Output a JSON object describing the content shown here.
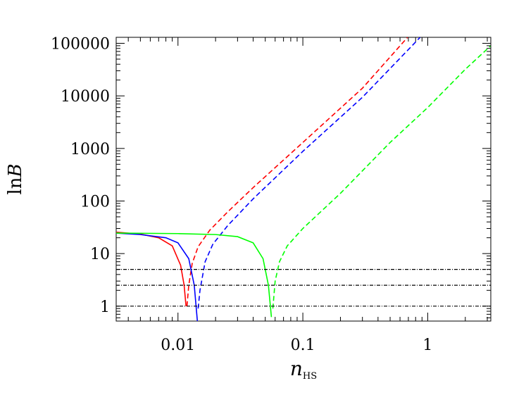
{
  "chart_data": {
    "type": "line",
    "xlabel": {
      "main": "n",
      "sub": "HS"
    },
    "ylabel": {
      "prefix": "ln",
      "main": "B"
    },
    "xscale": "log",
    "yscale": "log",
    "xlim": [
      0.0032,
      3.2
    ],
    "ylim": [
      0.52,
      130000
    ],
    "x_ticks": [
      {
        "value": 0.01,
        "label": "0.01"
      },
      {
        "value": 0.1,
        "label": "0.1"
      },
      {
        "value": 1,
        "label": "1"
      }
    ],
    "y_ticks": [
      {
        "value": 1,
        "label": "1"
      },
      {
        "value": 10,
        "label": "10"
      },
      {
        "value": 100,
        "label": "100"
      },
      {
        "value": 1000,
        "label": "1000"
      },
      {
        "value": 10000,
        "label": "10000"
      },
      {
        "value": 100000,
        "label": "100000"
      }
    ],
    "series": [
      {
        "color": "#ff0000",
        "style": "solid",
        "points": [
          [
            0.0032,
            25.5
          ],
          [
            0.005,
            23.5
          ],
          [
            0.007,
            20
          ],
          [
            0.009,
            14
          ],
          [
            0.0105,
            6
          ],
          [
            0.0112,
            2.5
          ],
          [
            0.0116,
            1.0
          ]
        ]
      },
      {
        "color": "#ff0000",
        "style": "dashed",
        "points": [
          [
            0.0118,
            1.0
          ],
          [
            0.0122,
            2.5
          ],
          [
            0.013,
            6.5
          ],
          [
            0.0145,
            13.5
          ],
          [
            0.018,
            28
          ],
          [
            0.025,
            62
          ],
          [
            0.04,
            180
          ],
          [
            0.1,
            1300
          ],
          [
            0.3,
            14000
          ],
          [
            0.69,
            130000
          ]
        ]
      },
      {
        "color": "#0000ff",
        "style": "solid",
        "points": [
          [
            0.0032,
            24.5
          ],
          [
            0.005,
            23
          ],
          [
            0.008,
            20
          ],
          [
            0.01,
            16
          ],
          [
            0.0122,
            8
          ],
          [
            0.0135,
            2.5
          ],
          [
            0.0143,
            0.52
          ]
        ]
      },
      {
        "color": "#0000ff",
        "style": "dashed",
        "points": [
          [
            0.0145,
            0.9
          ],
          [
            0.015,
            2
          ],
          [
            0.0165,
            7
          ],
          [
            0.019,
            15
          ],
          [
            0.025,
            34
          ],
          [
            0.04,
            110
          ],
          [
            0.1,
            880
          ],
          [
            0.3,
            9400
          ],
          [
            0.87,
            130000
          ]
        ]
      },
      {
        "color": "#00ff00",
        "style": "solid",
        "points": [
          [
            0.0032,
            24.5
          ],
          [
            0.01,
            24
          ],
          [
            0.02,
            23
          ],
          [
            0.03,
            21
          ],
          [
            0.04,
            16
          ],
          [
            0.048,
            8
          ],
          [
            0.053,
            2.5
          ],
          [
            0.056,
            0.62
          ]
        ]
      },
      {
        "color": "#00ff00",
        "style": "dashed",
        "points": [
          [
            0.0575,
            0.9
          ],
          [
            0.06,
            3
          ],
          [
            0.065,
            7
          ],
          [
            0.075,
            14
          ],
          [
            0.1,
            30
          ],
          [
            0.2,
            140
          ],
          [
            0.5,
            1300
          ],
          [
            1,
            6000
          ],
          [
            2,
            32000
          ],
          [
            3.2,
            90000
          ]
        ]
      },
      {
        "color": "#000000",
        "style": "dashdot",
        "points": [
          [
            0.0032,
            5
          ],
          [
            3.2,
            5
          ]
        ]
      },
      {
        "color": "#000000",
        "style": "dashdot",
        "points": [
          [
            0.0032,
            2.5
          ],
          [
            3.2,
            2.5
          ]
        ]
      },
      {
        "color": "#000000",
        "style": "dashdot",
        "points": [
          [
            0.0032,
            1
          ],
          [
            3.2,
            1
          ]
        ]
      }
    ]
  }
}
